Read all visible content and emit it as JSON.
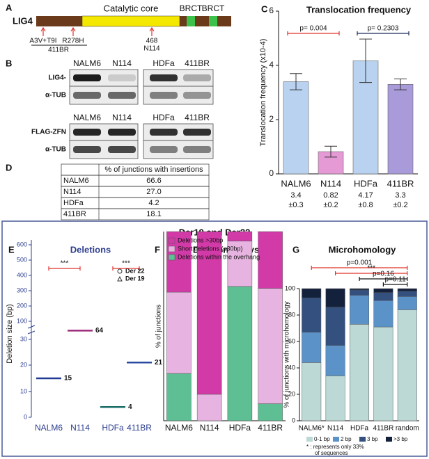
{
  "domain_diagram": {
    "panel": "A",
    "protein": "LIG4",
    "core": "Catalytic core",
    "domains": [
      "BRCT",
      "BRCT"
    ],
    "mutations": [
      {
        "label": "A3V+T9I"
      },
      {
        "label": "R278H"
      },
      {
        "label": "468",
        "line2": "N114"
      }
    ],
    "group": "411BR"
  },
  "blots": {
    "panel": "B",
    "lanes_top": [
      "NALM6",
      "N114",
      "HDFa",
      "411BR"
    ],
    "rows_top": [
      "LIG4-",
      "α-TUB"
    ],
    "lanes_bottom": [
      "NALM6",
      "N114",
      "HDFa",
      "411BR"
    ],
    "rows_bottom": [
      "FLAG-ZFN",
      "α-TUB"
    ]
  },
  "table": {
    "panel": "D",
    "header": [
      "",
      "% of junctions with insertions"
    ],
    "rows": [
      [
        "NALM6",
        "66.6"
      ],
      [
        "N114",
        "27.0"
      ],
      [
        "HDFa",
        "4.2"
      ],
      [
        "411BR",
        "18.1"
      ]
    ]
  },
  "section_title": "Der19 and Der22",
  "chart_data": [
    {
      "type": "bar",
      "panel": "C",
      "title": "Translocation frequency",
      "ylabel": "Translocation frequency (x10-4)",
      "categories": [
        "NALM6",
        "N114",
        "HDFa",
        "411BR"
      ],
      "values": [
        3.4,
        0.82,
        4.17,
        3.3
      ],
      "errors": [
        0.3,
        0.2,
        0.8,
        0.2
      ],
      "error_labels": [
        "±0.3",
        "±0.2",
        "±0.8",
        "±0.2"
      ],
      "colors": [
        "#b8d2f0",
        "#e59ad6",
        "#b8d2f0",
        "#a99ad9"
      ],
      "ylim": [
        0,
        6
      ],
      "yticks": [
        0,
        2,
        4,
        6
      ],
      "annotations": [
        {
          "text": "p= 0.004",
          "between": [
            0,
            1
          ],
          "color": "#e0302a"
        },
        {
          "text": "p= 0.2303",
          "between": [
            2,
            3
          ],
          "color": "#1a2a5a"
        }
      ]
    },
    {
      "type": "median",
      "panel": "E",
      "title": "Deletions",
      "ylabel": "Deletion size (bp)",
      "categories": [
        "NALM6",
        "N114",
        "HDFa",
        "411BR"
      ],
      "values": [
        15,
        64,
        4,
        21
      ],
      "colors": [
        "#1f3a93",
        "#9b2a7a",
        "#1a6e6a",
        "#2a4aa0"
      ],
      "yticks": [
        0,
        10,
        20,
        30,
        100,
        200,
        300,
        400,
        500,
        600
      ],
      "legend": [
        {
          "name": "Der 22",
          "marker": "circle"
        },
        {
          "name": "Der 19",
          "marker": "triangle"
        }
      ],
      "annotations": [
        {
          "text": "***",
          "between": [
            0,
            1
          ],
          "color": "#e0302a"
        },
        {
          "text": "***",
          "between": [
            2,
            3
          ],
          "color": "#e0302a"
        }
      ]
    },
    {
      "type": "stacked",
      "panel": "F",
      "title": "Deletion analysis",
      "ylabel": "% of junctions",
      "categories": [
        "NALM6",
        "N114",
        "HDFa",
        "411BR"
      ],
      "series": [
        {
          "name": "Deletions within the overhang",
          "color": "#5fbf94",
          "values": [
            25,
            0,
            71,
            9
          ]
        },
        {
          "name": "Short deletions (≤30bp)",
          "color": "#e7b3e0",
          "values": [
            43,
            14,
            24,
            61
          ]
        },
        {
          "name": "Deletions >30bp",
          "color": "#d23aa8",
          "values": [
            32,
            86,
            5,
            30
          ]
        }
      ],
      "ylim": [
        0,
        100
      ]
    },
    {
      "type": "stacked",
      "panel": "G",
      "title": "Microhomology",
      "ylabel": "% of junctions with microhomology",
      "categories": [
        "NALM6*",
        "N114",
        "HDFa",
        "411BR",
        "random"
      ],
      "series": [
        {
          "name": "0-1 bp",
          "color": "#bcd9d6",
          "values": [
            44,
            34,
            73,
            71,
            84
          ]
        },
        {
          "name": "2 bp",
          "color": "#5b93c8",
          "values": [
            23,
            23,
            22,
            20,
            10
          ]
        },
        {
          "name": "3 bp",
          "color": "#33507e",
          "values": [
            26,
            29,
            4,
            6,
            4
          ]
        },
        {
          "name": ">3 bp",
          "color": "#14213d",
          "values": [
            7,
            14,
            1,
            3,
            2
          ]
        }
      ],
      "ylim": [
        0,
        100
      ],
      "yticks": [
        0,
        20,
        40,
        60,
        80,
        100
      ],
      "annotations": [
        {
          "text": "p=0.001",
          "between": [
            0,
            4
          ],
          "color": "#e0302a"
        },
        {
          "text": "***",
          "between": [
            1,
            4
          ],
          "color": "#e0302a"
        },
        {
          "text": "p=0.16",
          "between": [
            2,
            4
          ],
          "color": "#111"
        },
        {
          "text": "p=0.11",
          "between": [
            3,
            4
          ],
          "color": "#111"
        }
      ],
      "footnote": [
        "* : represents  only 33%",
        "of sequences"
      ]
    }
  ]
}
